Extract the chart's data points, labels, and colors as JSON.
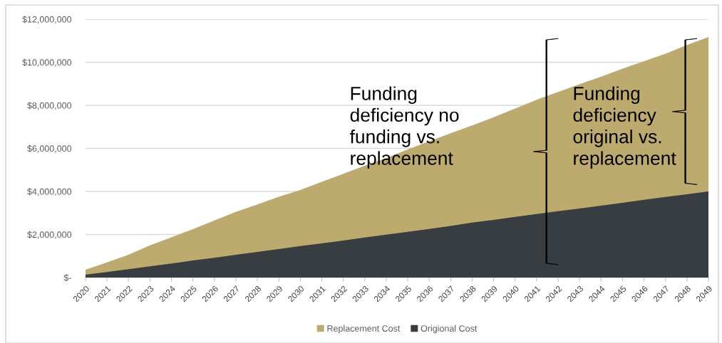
{
  "chart_data": {
    "type": "area",
    "categories": [
      "2020",
      "2021",
      "2022",
      "2023",
      "2024",
      "2025",
      "2026",
      "2027",
      "2028",
      "2029",
      "2030",
      "2031",
      "2032",
      "2033",
      "2034",
      "2035",
      "2036",
      "2037",
      "2038",
      "2039",
      "2040",
      "2041",
      "2042",
      "2043",
      "2044",
      "2045",
      "2046",
      "2047",
      "2048",
      "2049"
    ],
    "series": [
      {
        "name": "Replacement Cost",
        "color": "#bcaa6e",
        "values": [
          360000,
          700000,
          1060000,
          1500000,
          1870000,
          2250000,
          2650000,
          3050000,
          3400000,
          3750000,
          4070000,
          4450000,
          4820000,
          5200000,
          5550000,
          5950000,
          6330000,
          6700000,
          7070000,
          7450000,
          7850000,
          8260000,
          8620000,
          8980000,
          9330000,
          9700000,
          10050000,
          10400000,
          10800000,
          11170000
        ]
      },
      {
        "name": "Origional Cost",
        "color": "#373d41",
        "values": [
          130000,
          260000,
          390000,
          520000,
          650000,
          790000,
          920000,
          1060000,
          1190000,
          1320000,
          1460000,
          1590000,
          1720000,
          1860000,
          1990000,
          2120000,
          2260000,
          2400000,
          2550000,
          2680000,
          2820000,
          2950000,
          3080000,
          3210000,
          3340000,
          3470000,
          3610000,
          3740000,
          3870000,
          4000000
        ]
      }
    ],
    "ylim": [
      0,
      12000000
    ],
    "yticks": [
      {
        "value": 0,
        "label": "$-"
      },
      {
        "value": 2000000,
        "label": "$2,000,000"
      },
      {
        "value": 4000000,
        "label": "$4,000,000"
      },
      {
        "value": 6000000,
        "label": "$6,000,000"
      },
      {
        "value": 8000000,
        "label": "$8,000,000"
      },
      {
        "value": 10000000,
        "label": "$10,000,000"
      },
      {
        "value": 12000000,
        "label": "$12,000,000"
      }
    ],
    "grid": "y",
    "legend": "bottom",
    "annotations": [
      "Funding\ndeficiency no\nfunding vs.\nreplacement",
      "Funding\ndeficiency\noriginal vs.\nreplacement"
    ]
  }
}
